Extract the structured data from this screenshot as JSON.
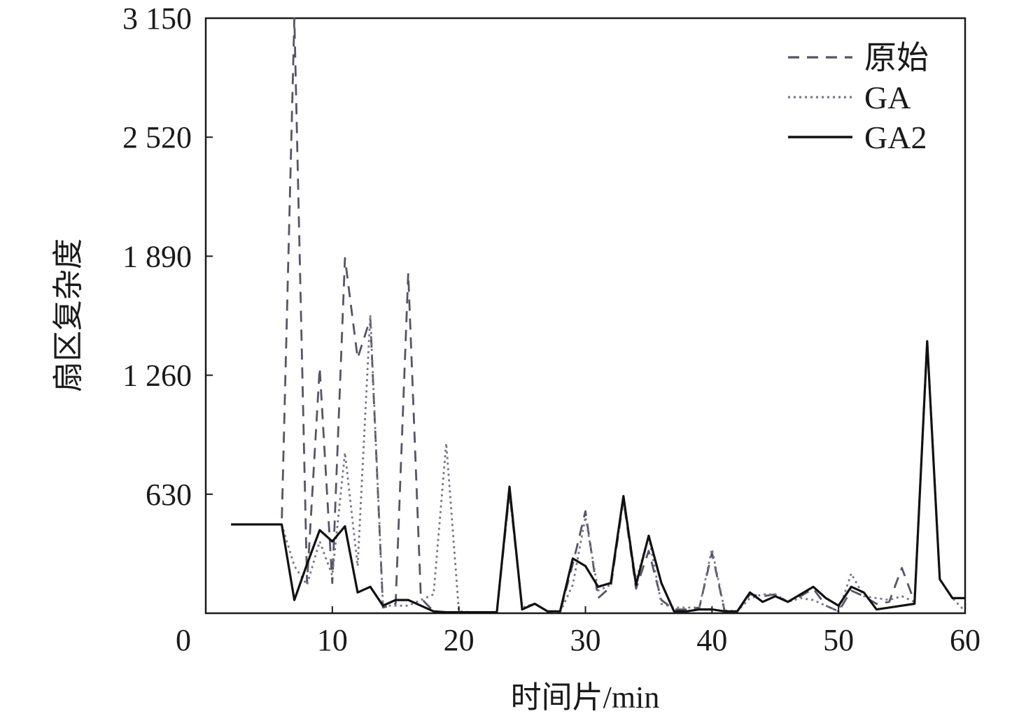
{
  "chart_data": {
    "type": "line",
    "title": "",
    "xlabel": "时间片/min",
    "ylabel": "扇区复杂度",
    "xlim": [
      0,
      60
    ],
    "ylim": [
      0,
      3150
    ],
    "x_ticks": [
      "0",
      "10",
      "20",
      "30",
      "40",
      "50",
      "60"
    ],
    "y_ticks": [
      "3 150",
      "2 520",
      "1 890",
      "1 260",
      "630"
    ],
    "grid": false,
    "legend_position": "top-right",
    "x": [
      2,
      3,
      4,
      5,
      6,
      7,
      8,
      9,
      10,
      11,
      12,
      13,
      14,
      15,
      16,
      17,
      18,
      19,
      20,
      21,
      22,
      23,
      24,
      25,
      26,
      27,
      28,
      29,
      30,
      31,
      32,
      33,
      34,
      35,
      36,
      37,
      38,
      39,
      40,
      41,
      42,
      43,
      44,
      45,
      46,
      47,
      48,
      49,
      50,
      51,
      52,
      53,
      54,
      55,
      56,
      57,
      58,
      59,
      60
    ],
    "series": [
      {
        "name": "原始",
        "style": "dashed",
        "color": "#555566",
        "values": [
          470,
          470,
          470,
          470,
          470,
          3150,
          160,
          1300,
          160,
          1880,
          1350,
          1560,
          30,
          50,
          1800,
          80,
          10,
          5,
          5,
          5,
          5,
          5,
          640,
          30,
          50,
          10,
          5,
          260,
          540,
          80,
          140,
          600,
          130,
          330,
          70,
          20,
          20,
          30,
          320,
          10,
          10,
          100,
          90,
          100,
          60,
          90,
          130,
          40,
          10,
          120,
          90,
          50,
          60,
          240,
          60,
          1440,
          180,
          80,
          80
        ]
      },
      {
        "name": "GA",
        "style": "dotted",
        "color": "#777788",
        "values": [
          470,
          470,
          470,
          470,
          470,
          250,
          150,
          380,
          200,
          850,
          250,
          1580,
          40,
          40,
          40,
          70,
          100,
          900,
          10,
          5,
          5,
          5,
          640,
          30,
          50,
          10,
          5,
          150,
          510,
          120,
          150,
          610,
          170,
          410,
          50,
          30,
          30,
          30,
          340,
          15,
          10,
          80,
          100,
          100,
          60,
          80,
          70,
          40,
          10,
          210,
          90,
          80,
          70,
          90,
          60,
          1440,
          180,
          80,
          10
        ]
      },
      {
        "name": "GA2",
        "style": "solid",
        "color": "#111111",
        "values": [
          470,
          470,
          470,
          470,
          470,
          70,
          260,
          440,
          380,
          460,
          110,
          140,
          40,
          70,
          70,
          40,
          10,
          5,
          5,
          5,
          5,
          5,
          670,
          20,
          50,
          10,
          10,
          290,
          250,
          140,
          160,
          620,
          150,
          410,
          160,
          10,
          10,
          20,
          20,
          10,
          10,
          110,
          60,
          90,
          60,
          100,
          140,
          80,
          40,
          140,
          110,
          20,
          30,
          40,
          50,
          1440,
          180,
          80,
          80
        ]
      }
    ]
  }
}
